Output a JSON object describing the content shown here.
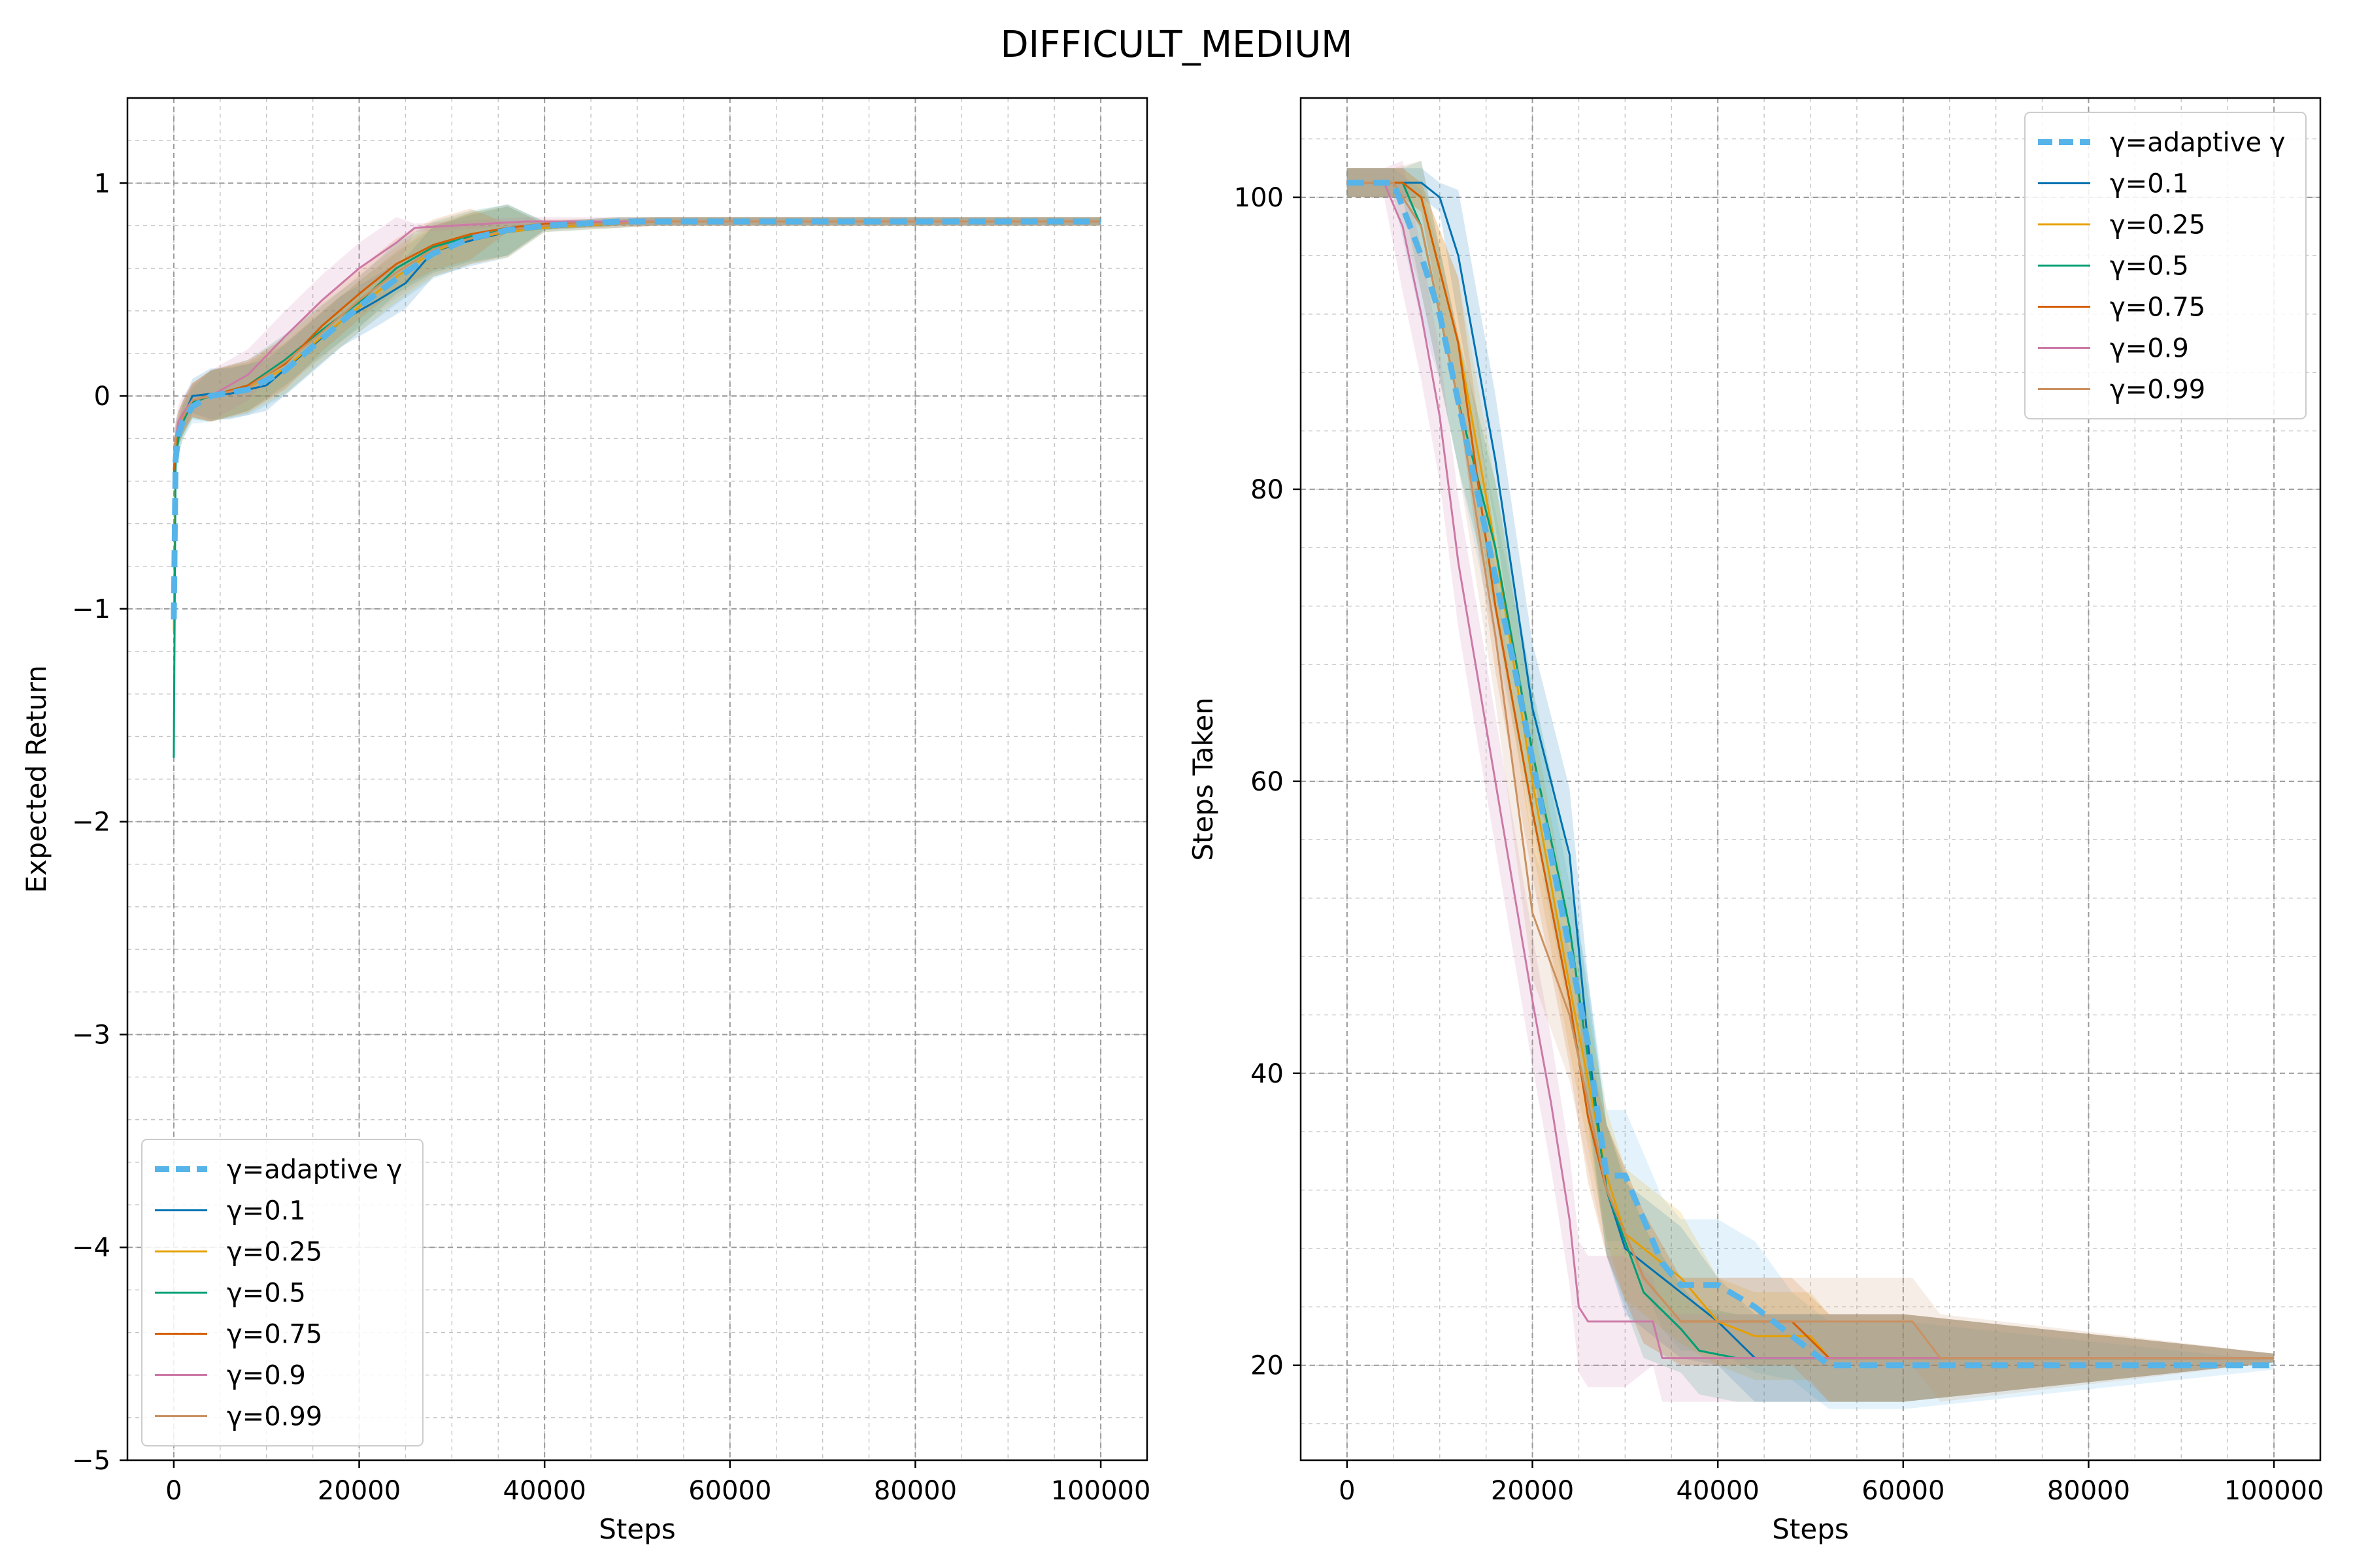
{
  "title": "DIFFICULT_MEDIUM",
  "colors": {
    "adaptive": "#56b4e9",
    "g01": "#0072b2",
    "g025": "#e69f00",
    "g05": "#009e73",
    "g075": "#d55e00",
    "g09": "#cc79a7",
    "g099": "#ca9161"
  },
  "chart_data": [
    {
      "type": "line",
      "xlabel": "Steps",
      "ylabel": "Expected Return",
      "xlim": [
        -5000,
        105000
      ],
      "ylim": [
        -5,
        1.4
      ],
      "xticks": [
        0,
        20000,
        40000,
        60000,
        80000,
        100000
      ],
      "yticks": [
        1,
        0,
        -1,
        -2,
        -3,
        -4,
        -5
      ],
      "ytick_labels": [
        "1",
        "0",
        "−1",
        "−2",
        "−3",
        "−4",
        "−5"
      ],
      "grid": true,
      "legend_position": "lower-left",
      "series": [
        {
          "name": "γ=adaptive γ",
          "style": "dashed",
          "color_key": "adaptive",
          "x": [
            0,
            200,
            500,
            1000,
            2000,
            4000,
            8000,
            12000,
            16000,
            20000,
            24000,
            28000,
            32000,
            36000,
            40000,
            44000,
            48000,
            52000,
            60000,
            80000,
            100000
          ],
          "y": [
            -1.05,
            -0.3,
            -0.18,
            -0.12,
            -0.05,
            0.0,
            0.03,
            0.12,
            0.27,
            0.42,
            0.55,
            0.67,
            0.74,
            0.78,
            0.8,
            0.81,
            0.82,
            0.82,
            0.82,
            0.82,
            0.82
          ]
        },
        {
          "name": "γ=0.1",
          "color_key": "g01",
          "x": [
            0,
            200,
            500,
            1000,
            2000,
            4000,
            6000,
            10000,
            14000,
            18000,
            22000,
            25000,
            28000,
            32000,
            36000,
            40000,
            44000,
            48000,
            52000,
            60000,
            80000,
            100000
          ],
          "y": [
            -0.4,
            -0.2,
            -0.15,
            -0.1,
            0.0,
            0.01,
            0.01,
            0.05,
            0.2,
            0.35,
            0.45,
            0.53,
            0.68,
            0.73,
            0.77,
            0.79,
            0.8,
            0.81,
            0.82,
            0.82,
            0.82,
            0.82
          ]
        },
        {
          "name": "γ=0.25",
          "color_key": "g025",
          "x": [
            0,
            200,
            500,
            1000,
            2000,
            4000,
            8000,
            12000,
            16000,
            20000,
            24000,
            28000,
            32000,
            36000,
            40000,
            44000,
            48000,
            52000,
            60000,
            80000,
            100000
          ],
          "y": [
            -1.1,
            -0.25,
            -0.15,
            -0.1,
            -0.02,
            0.0,
            0.04,
            0.13,
            0.28,
            0.42,
            0.56,
            0.68,
            0.74,
            0.77,
            0.79,
            0.8,
            0.81,
            0.82,
            0.82,
            0.82,
            0.82
          ]
        },
        {
          "name": "γ=0.5",
          "color_key": "g05",
          "x": [
            0,
            200,
            500,
            1000,
            2000,
            4000,
            8000,
            12000,
            16000,
            20000,
            24000,
            28000,
            32000,
            36000,
            40000,
            44000,
            48000,
            52000,
            60000,
            80000,
            100000
          ],
          "y": [
            -1.7,
            -0.3,
            -0.2,
            -0.12,
            -0.03,
            0.0,
            0.05,
            0.17,
            0.31,
            0.44,
            0.6,
            0.7,
            0.75,
            0.78,
            0.8,
            0.81,
            0.82,
            0.82,
            0.82,
            0.82,
            0.82
          ]
        },
        {
          "name": "γ=0.75",
          "color_key": "g075",
          "x": [
            0,
            200,
            500,
            1000,
            2000,
            4000,
            8000,
            12000,
            16000,
            20000,
            24000,
            28000,
            32000,
            36000,
            40000,
            44000,
            48000,
            52000,
            60000,
            80000,
            100000
          ],
          "y": [
            -0.35,
            -0.22,
            -0.16,
            -0.1,
            -0.02,
            0.0,
            0.05,
            0.15,
            0.33,
            0.48,
            0.62,
            0.71,
            0.76,
            0.79,
            0.81,
            0.81,
            0.82,
            0.82,
            0.82,
            0.82,
            0.82
          ]
        },
        {
          "name": "γ=0.9",
          "color_key": "g09",
          "x": [
            0,
            200,
            500,
            1000,
            2000,
            4000,
            8000,
            12000,
            16000,
            20000,
            24000,
            26000,
            30000,
            34000,
            38000,
            42000,
            46000,
            50000,
            60000,
            80000,
            100000
          ],
          "y": [
            -0.3,
            -0.2,
            -0.12,
            -0.08,
            -0.02,
            0.0,
            0.1,
            0.28,
            0.45,
            0.6,
            0.72,
            0.79,
            0.8,
            0.81,
            0.82,
            0.82,
            0.82,
            0.82,
            0.82,
            0.82,
            0.82
          ]
        },
        {
          "name": "γ=0.99",
          "color_key": "g099",
          "x": [
            0,
            200,
            500,
            1000,
            2000,
            4000,
            8000,
            12000,
            16000,
            20000,
            24000,
            28000,
            32000,
            36000,
            40000,
            44000,
            48000,
            52000,
            60000,
            64000,
            80000,
            100000
          ],
          "y": [
            -0.3,
            -0.2,
            -0.15,
            -0.1,
            -0.02,
            0.0,
            0.04,
            0.16,
            0.3,
            0.45,
            0.58,
            0.69,
            0.74,
            0.78,
            0.8,
            0.81,
            0.81,
            0.82,
            0.82,
            0.82,
            0.82,
            0.82
          ]
        }
      ]
    },
    {
      "type": "line",
      "xlabel": "Steps",
      "ylabel": "Steps Taken",
      "xlim": [
        -5000,
        105000
      ],
      "ylim": [
        13.5,
        106.8
      ],
      "xticks": [
        0,
        20000,
        40000,
        60000,
        80000,
        100000
      ],
      "yticks": [
        100,
        80,
        60,
        40,
        20
      ],
      "ytick_labels": [
        "100",
        "80",
        "60",
        "40",
        "20"
      ],
      "grid": true,
      "legend_position": "upper-right",
      "series": [
        {
          "name": "γ=adaptive γ",
          "style": "dashed",
          "color_key": "adaptive",
          "x": [
            0,
            5000,
            8000,
            10000,
            14000,
            18000,
            22000,
            26000,
            28000,
            30000,
            32000,
            34000,
            36000,
            38000,
            40000,
            44000,
            48000,
            52000,
            60000,
            100000
          ],
          "y": [
            101,
            101,
            96,
            92,
            80,
            68,
            55,
            42,
            33,
            33,
            30,
            27,
            25.5,
            25.5,
            25.5,
            24,
            22,
            20,
            20,
            20
          ]
        },
        {
          "name": "γ=0.1",
          "color_key": "g01",
          "x": [
            0,
            8000,
            10000,
            12000,
            16000,
            20000,
            24000,
            26000,
            28000,
            30000,
            32000,
            36000,
            40000,
            44000,
            48000,
            60000,
            100000
          ],
          "y": [
            101,
            101,
            100,
            96,
            82,
            65,
            55,
            42,
            32,
            28,
            27,
            25,
            23,
            20.5,
            20.5,
            20.5,
            20.5
          ]
        },
        {
          "name": "γ=0.25",
          "color_key": "g025",
          "x": [
            0,
            6000,
            8000,
            12000,
            16000,
            20000,
            24000,
            28000,
            30000,
            32000,
            36000,
            40000,
            44000,
            48000,
            50000,
            52000,
            60000,
            100000
          ],
          "y": [
            101,
            101,
            100,
            90,
            76,
            60,
            46,
            33,
            29,
            28,
            26,
            23,
            22,
            22,
            22,
            20.5,
            20.5,
            20.5
          ]
        },
        {
          "name": "γ=0.5",
          "color_key": "g05",
          "x": [
            0,
            6000,
            8000,
            10000,
            12000,
            16000,
            20000,
            24000,
            28000,
            32000,
            36000,
            38000,
            42000,
            46000,
            60000,
            100000
          ],
          "y": [
            101,
            101,
            98,
            92,
            86,
            76,
            62,
            50,
            32,
            25,
            22.5,
            21,
            20.5,
            20.5,
            20.5,
            20.5
          ]
        },
        {
          "name": "γ=0.75",
          "color_key": "g075",
          "x": [
            0,
            6000,
            8000,
            12000,
            16000,
            20000,
            24000,
            26000,
            28000,
            30000,
            32000,
            36000,
            40000,
            44000,
            48000,
            52000,
            60000,
            100000
          ],
          "y": [
            101,
            101,
            100,
            90,
            72,
            58,
            45,
            37,
            32,
            29,
            26,
            23,
            23,
            23,
            23,
            20.5,
            20.5,
            20.5
          ]
        },
        {
          "name": "γ=0.9",
          "color_key": "g09",
          "x": [
            0,
            4000,
            6000,
            8000,
            10000,
            12000,
            16000,
            20000,
            22000,
            24000,
            25000,
            26000,
            30000,
            33000,
            34000,
            36000,
            60000,
            100000
          ],
          "y": [
            101,
            101,
            98,
            92,
            85,
            75,
            60,
            45,
            38,
            30,
            24,
            23,
            23,
            23,
            20.5,
            20.5,
            20.5,
            20.5
          ]
        },
        {
          "name": "γ=0.99",
          "color_key": "g099",
          "x": [
            0,
            5000,
            8000,
            12000,
            16000,
            20000,
            24000,
            28000,
            32000,
            36000,
            40000,
            44000,
            52000,
            60000,
            61000,
            64000,
            100000
          ],
          "y": [
            101,
            101,
            98,
            86,
            70,
            51,
            44,
            32,
            26,
            23,
            23,
            23,
            23,
            23,
            23,
            20.5,
            20.5
          ]
        }
      ]
    }
  ]
}
